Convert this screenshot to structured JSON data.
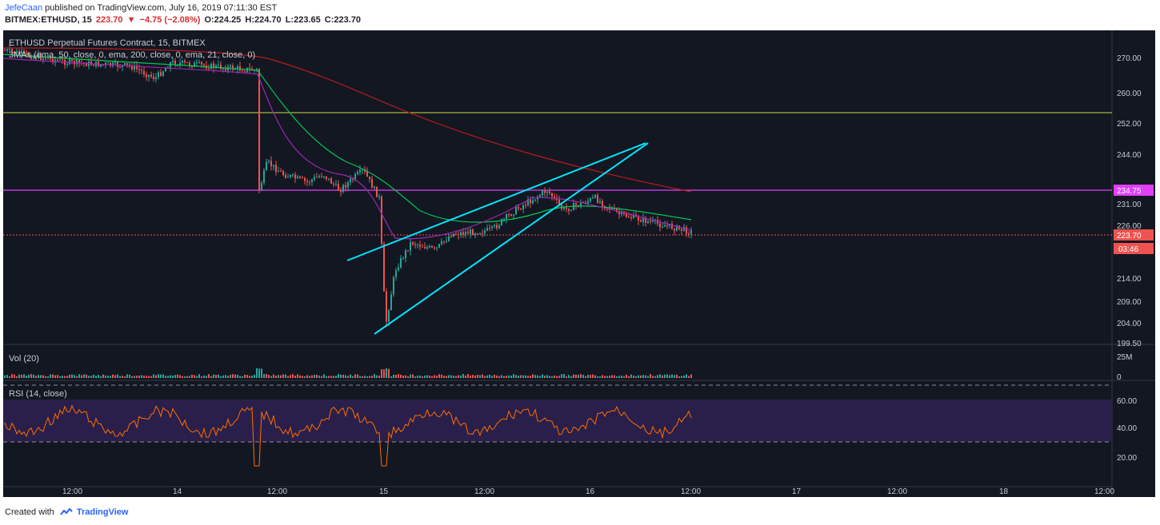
{
  "header": {
    "author": "JefeCaan",
    "published_text": "published on TradingView.com, July 16, 2019 07:11:30 EST",
    "symbol": "BITMEX:ETHUSD, 15",
    "last": "223.70",
    "change_arrow": "▼",
    "change": "−4.75 (−2.08%)",
    "open": "O:224.25",
    "high": "H:224.70",
    "low": "L:223.65",
    "close": "C:223.70"
  },
  "chart": {
    "legend_title": "ETHUSD Perpetual Futures Contract, 15, BITMEX",
    "legend_indicator": "3MAs (ema, 50, close, 0, ema, 200, close, 0, ema, 21, close, 0)",
    "vol_label": "Vol (20)",
    "rsi_label": "RSI (14, close)",
    "price_badge": "223.70",
    "countdown_badge": "03:46",
    "level_badge": "234.75",
    "price_ticks": [
      "270.00",
      "260.00",
      "252.00",
      "244.00",
      "231.00",
      "226.00",
      "214.00",
      "209.00",
      "204.00",
      "199.50"
    ],
    "vol_ticks": [
      "25M",
      "0"
    ],
    "rsi_ticks": [
      "60.00",
      "40.00",
      "20.00"
    ],
    "time_ticks": [
      "12:00",
      "14",
      "12:00",
      "15",
      "12:00",
      "16",
      "12:00",
      "17",
      "12:00",
      "18",
      "12:00"
    ],
    "colors": {
      "background": "#131722",
      "up_candle": "#26a69a",
      "down_candle": "#ef5350",
      "ema50": "#00c853",
      "ema200": "#b71c1c",
      "ema21": "#9c27b0",
      "wedge_lines": "#00e5ff",
      "yellow_level": "#cddc39",
      "magenta_level": "#e040fb",
      "rsi_line": "#ff6d00",
      "rsi_band": "#2a1f4a"
    }
  },
  "footer": {
    "created_with": "Created with",
    "brand": "TradingView"
  }
}
